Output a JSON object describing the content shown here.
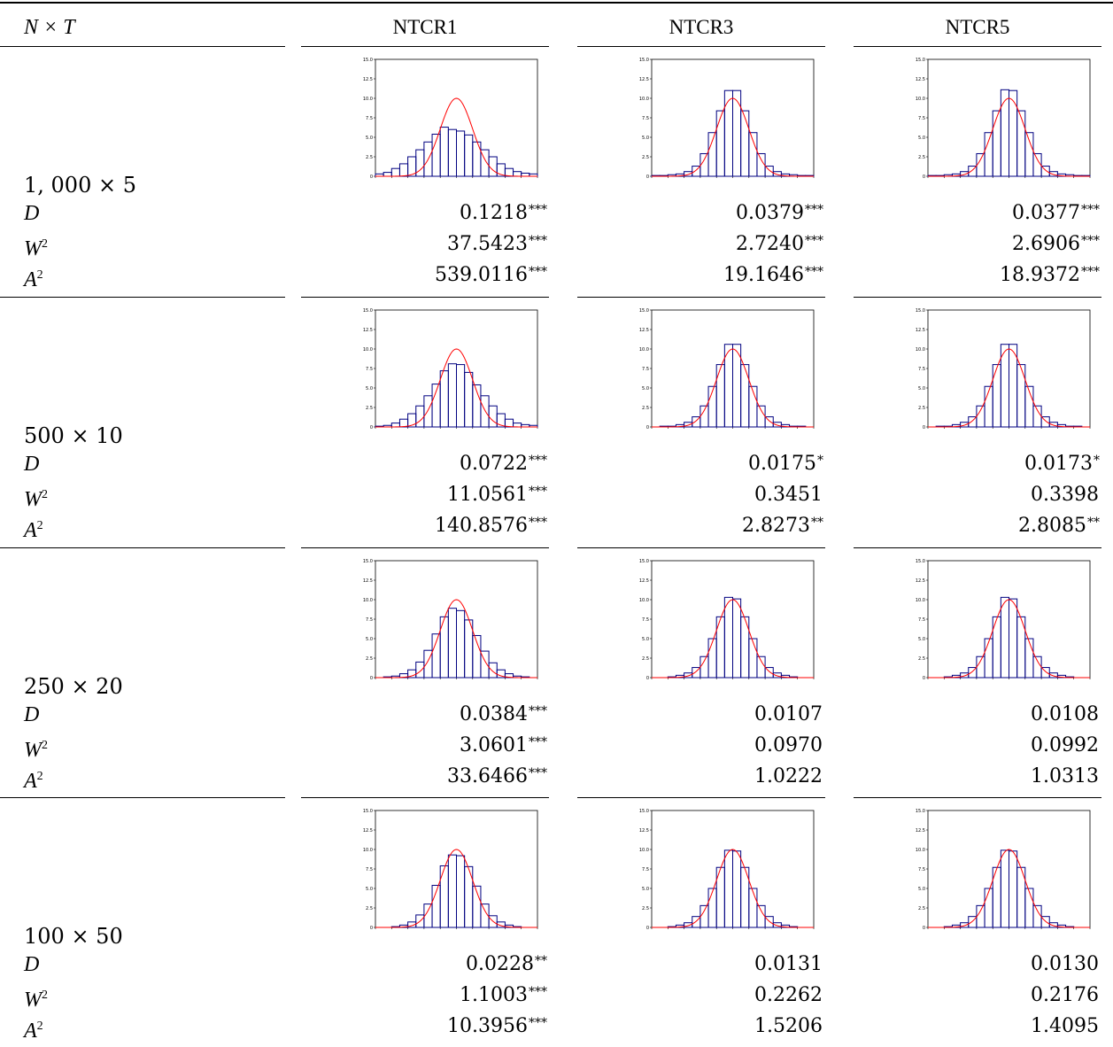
{
  "table": {
    "header": {
      "row_label": "N × T",
      "columns": [
        "NTCR1",
        "NTCR3",
        "NTCR5"
      ]
    },
    "stat_labels": {
      "D": "D",
      "W": "W",
      "A": "A",
      "sup2": "2"
    },
    "axis": {
      "y_ticks": [
        "0",
        "2.5",
        "5.0",
        "7.5",
        "10.0",
        "12.5",
        "15.0"
      ],
      "x_ticks": [
        "-5",
        "-4",
        "-3",
        "-2",
        "-1",
        "0",
        "1",
        "2",
        "3",
        "4",
        "5"
      ]
    },
    "rows": [
      {
        "label": "1, 000 × 5",
        "cells": [
          {
            "D": "0.1218",
            "D_sig": "***",
            "W2": "37.5423",
            "W2_sig": "***",
            "A2": "539.0116",
            "A2_sig": "***"
          },
          {
            "D": "0.0379",
            "D_sig": "***",
            "W2": "2.7240",
            "W2_sig": "***",
            "A2": "19.1646",
            "A2_sig": "***"
          },
          {
            "D": "0.0377",
            "D_sig": "***",
            "W2": "2.6906",
            "W2_sig": "***",
            "A2": "18.9372",
            "A2_sig": "***"
          }
        ]
      },
      {
        "label": "500 × 10",
        "cells": [
          {
            "D": "0.0722",
            "D_sig": "***",
            "W2": "11.0561",
            "W2_sig": "***",
            "A2": "140.8576",
            "A2_sig": "***"
          },
          {
            "D": "0.0175",
            "D_sig": "*",
            "W2": "0.3451",
            "W2_sig": "",
            "A2": "2.8273",
            "A2_sig": "**"
          },
          {
            "D": "0.0173",
            "D_sig": "*",
            "W2": "0.3398",
            "W2_sig": "",
            "A2": "2.8085",
            "A2_sig": "**"
          }
        ]
      },
      {
        "label": "250 × 20",
        "cells": [
          {
            "D": "0.0384",
            "D_sig": "***",
            "W2": "3.0601",
            "W2_sig": "***",
            "A2": "33.6466",
            "A2_sig": "***"
          },
          {
            "D": "0.0107",
            "D_sig": "",
            "W2": "0.0970",
            "W2_sig": "",
            "A2": "1.0222",
            "A2_sig": ""
          },
          {
            "D": "0.0108",
            "D_sig": "",
            "W2": "0.0992",
            "W2_sig": "",
            "A2": "1.0313",
            "A2_sig": ""
          }
        ]
      },
      {
        "label": "100 × 50",
        "cells": [
          {
            "D": "0.0228",
            "D_sig": "**",
            "W2": "1.1003",
            "W2_sig": "***",
            "A2": "10.3956",
            "A2_sig": "***"
          },
          {
            "D": "0.0131",
            "D_sig": "",
            "W2": "0.2262",
            "W2_sig": "",
            "A2": "1.5206",
            "A2_sig": ""
          },
          {
            "D": "0.0130",
            "D_sig": "",
            "W2": "0.2176",
            "W2_sig": "",
            "A2": "1.4095",
            "A2_sig": ""
          }
        ]
      }
    ]
  },
  "chart_data": [
    {
      "type": "bar",
      "row": "1, 000 × 5",
      "column": "NTCR1",
      "x": [
        -4.75,
        -4.25,
        -3.75,
        -3.25,
        -2.75,
        -2.25,
        -1.75,
        -1.25,
        -0.75,
        -0.25,
        0.25,
        0.75,
        1.25,
        1.75,
        2.25,
        2.75,
        3.25,
        3.75,
        4.25,
        4.75
      ],
      "values": [
        0.3,
        0.5,
        1.0,
        1.6,
        2.5,
        3.4,
        4.4,
        5.4,
        6.3,
        6.0,
        5.8,
        5.3,
        4.4,
        3.4,
        2.5,
        1.6,
        1.0,
        0.6,
        0.4,
        0.3
      ],
      "overlay": "normal density",
      "xlim": [
        -5,
        5
      ],
      "ylim": [
        0,
        15
      ],
      "colors": {
        "bars": "#000080",
        "curve": "#ff0000"
      }
    },
    {
      "type": "bar",
      "row": "1, 000 × 5",
      "column": "NTCR3",
      "x": [
        -4.75,
        -4.25,
        -3.75,
        -3.25,
        -2.75,
        -2.25,
        -1.75,
        -1.25,
        -0.75,
        -0.25,
        0.25,
        0.75,
        1.25,
        1.75,
        2.25,
        2.75,
        3.25,
        3.75,
        4.25,
        4.75
      ],
      "values": [
        0.1,
        0.1,
        0.2,
        0.3,
        0.6,
        1.3,
        2.9,
        5.6,
        8.4,
        11.0,
        11.0,
        8.4,
        5.6,
        2.9,
        1.3,
        0.6,
        0.3,
        0.2,
        0.1,
        0.1
      ],
      "overlay": "normal density",
      "xlim": [
        -5,
        5
      ],
      "ylim": [
        0,
        15
      ]
    },
    {
      "type": "bar",
      "row": "1, 000 × 5",
      "column": "NTCR5",
      "x": [
        -4.75,
        -4.25,
        -3.75,
        -3.25,
        -2.75,
        -2.25,
        -1.75,
        -1.25,
        -0.75,
        -0.25,
        0.25,
        0.75,
        1.25,
        1.75,
        2.25,
        2.75,
        3.25,
        3.75,
        4.25,
        4.75
      ],
      "values": [
        0.1,
        0.1,
        0.2,
        0.3,
        0.6,
        1.3,
        2.9,
        5.6,
        8.4,
        11.1,
        11.0,
        8.4,
        5.6,
        2.9,
        1.3,
        0.6,
        0.3,
        0.2,
        0.1,
        0.1
      ],
      "overlay": "normal density",
      "xlim": [
        -5,
        5
      ],
      "ylim": [
        0,
        15
      ]
    },
    {
      "type": "bar",
      "row": "500 × 10",
      "column": "NTCR1",
      "x": [
        -4.75,
        -4.25,
        -3.75,
        -3.25,
        -2.75,
        -2.25,
        -1.75,
        -1.25,
        -0.75,
        -0.25,
        0.25,
        0.75,
        1.25,
        1.75,
        2.25,
        2.75,
        3.25,
        3.75,
        4.25,
        4.75
      ],
      "values": [
        0.1,
        0.2,
        0.5,
        1.0,
        1.7,
        2.7,
        4.0,
        5.5,
        7.2,
        8.1,
        8.0,
        7.0,
        5.4,
        4.0,
        2.7,
        1.7,
        1.0,
        0.5,
        0.3,
        0.2
      ],
      "overlay": "normal density",
      "xlim": [
        -5,
        5
      ],
      "ylim": [
        0,
        15
      ]
    },
    {
      "type": "bar",
      "row": "500 × 10",
      "column": "NTCR3",
      "x": [
        -4.75,
        -4.25,
        -3.75,
        -3.25,
        -2.75,
        -2.25,
        -1.75,
        -1.25,
        -0.75,
        -0.25,
        0.25,
        0.75,
        1.25,
        1.75,
        2.25,
        2.75,
        3.25,
        3.75,
        4.25,
        4.75
      ],
      "values": [
        0.0,
        0.1,
        0.1,
        0.3,
        0.6,
        1.3,
        2.7,
        5.2,
        8.0,
        10.6,
        10.6,
        8.0,
        5.2,
        2.7,
        1.3,
        0.6,
        0.3,
        0.1,
        0.1,
        0.0
      ],
      "overlay": "normal density",
      "xlim": [
        -5,
        5
      ],
      "ylim": [
        0,
        15
      ]
    },
    {
      "type": "bar",
      "row": "500 × 10",
      "column": "NTCR5",
      "x": [
        -4.75,
        -4.25,
        -3.75,
        -3.25,
        -2.75,
        -2.25,
        -1.75,
        -1.25,
        -0.75,
        -0.25,
        0.25,
        0.75,
        1.25,
        1.75,
        2.25,
        2.75,
        3.25,
        3.75,
        4.25,
        4.75
      ],
      "values": [
        0.0,
        0.1,
        0.1,
        0.3,
        0.6,
        1.3,
        2.7,
        5.2,
        8.0,
        10.6,
        10.6,
        8.0,
        5.2,
        2.7,
        1.3,
        0.6,
        0.3,
        0.1,
        0.1,
        0.0
      ],
      "overlay": "normal density",
      "xlim": [
        -5,
        5
      ],
      "ylim": [
        0,
        15
      ]
    },
    {
      "type": "bar",
      "row": "250 × 20",
      "column": "NTCR1",
      "x": [
        -4.75,
        -4.25,
        -3.75,
        -3.25,
        -2.75,
        -2.25,
        -1.75,
        -1.25,
        -0.75,
        -0.25,
        0.25,
        0.75,
        1.25,
        1.75,
        2.25,
        2.75,
        3.25,
        3.75,
        4.25,
        4.75
      ],
      "values": [
        0.0,
        0.1,
        0.2,
        0.5,
        1.0,
        2.0,
        3.5,
        5.6,
        7.8,
        8.9,
        8.6,
        7.4,
        5.4,
        3.4,
        1.9,
        1.0,
        0.5,
        0.2,
        0.1,
        0.0
      ],
      "overlay": "normal density",
      "xlim": [
        -5,
        5
      ],
      "ylim": [
        0,
        15
      ]
    },
    {
      "type": "bar",
      "row": "250 × 20",
      "column": "NTCR3",
      "x": [
        -4.75,
        -4.25,
        -3.75,
        -3.25,
        -2.75,
        -2.25,
        -1.75,
        -1.25,
        -0.75,
        -0.25,
        0.25,
        0.75,
        1.25,
        1.75,
        2.25,
        2.75,
        3.25,
        3.75,
        4.25,
        4.75
      ],
      "values": [
        0.0,
        0.0,
        0.1,
        0.3,
        0.6,
        1.3,
        2.7,
        5.0,
        7.8,
        10.3,
        10.1,
        7.8,
        5.0,
        2.7,
        1.3,
        0.6,
        0.3,
        0.1,
        0.0,
        0.0
      ],
      "overlay": "normal density",
      "xlim": [
        -5,
        5
      ],
      "ylim": [
        0,
        15
      ]
    },
    {
      "type": "bar",
      "row": "250 × 20",
      "column": "NTCR5",
      "x": [
        -4.75,
        -4.25,
        -3.75,
        -3.25,
        -2.75,
        -2.25,
        -1.75,
        -1.25,
        -0.75,
        -0.25,
        0.25,
        0.75,
        1.25,
        1.75,
        2.25,
        2.75,
        3.25,
        3.75,
        4.25,
        4.75
      ],
      "values": [
        0.0,
        0.0,
        0.1,
        0.3,
        0.6,
        1.3,
        2.7,
        5.0,
        7.8,
        10.3,
        10.1,
        7.8,
        5.0,
        2.7,
        1.3,
        0.6,
        0.3,
        0.1,
        0.0,
        0.0
      ],
      "overlay": "normal density",
      "xlim": [
        -5,
        5
      ],
      "ylim": [
        0,
        15
      ]
    },
    {
      "type": "bar",
      "row": "100 × 50",
      "column": "NTCR1",
      "x": [
        -4.75,
        -4.25,
        -3.75,
        -3.25,
        -2.75,
        -2.25,
        -1.75,
        -1.25,
        -0.75,
        -0.25,
        0.25,
        0.75,
        1.25,
        1.75,
        2.25,
        2.75,
        3.25,
        3.75,
        4.25,
        4.75
      ],
      "values": [
        0.0,
        0.0,
        0.1,
        0.3,
        0.7,
        1.6,
        3.0,
        5.4,
        7.9,
        9.3,
        9.2,
        7.8,
        5.3,
        3.0,
        1.5,
        0.7,
        0.3,
        0.1,
        0.0,
        0.0
      ],
      "overlay": "normal density",
      "xlim": [
        -5,
        5
      ],
      "ylim": [
        0,
        15
      ]
    },
    {
      "type": "bar",
      "row": "100 × 50",
      "column": "NTCR3",
      "x": [
        -4.75,
        -4.25,
        -3.75,
        -3.25,
        -2.75,
        -2.25,
        -1.75,
        -1.25,
        -0.75,
        -0.25,
        0.25,
        0.75,
        1.25,
        1.75,
        2.25,
        2.75,
        3.25,
        3.75,
        4.25,
        4.75
      ],
      "values": [
        0.0,
        0.0,
        0.1,
        0.3,
        0.6,
        1.4,
        2.8,
        5.0,
        7.7,
        9.9,
        9.8,
        7.7,
        5.0,
        2.8,
        1.4,
        0.6,
        0.3,
        0.1,
        0.0,
        0.0
      ],
      "overlay": "normal density",
      "xlim": [
        -5,
        5
      ],
      "ylim": [
        0,
        15
      ]
    },
    {
      "type": "bar",
      "row": "100 × 50",
      "column": "NTCR5",
      "x": [
        -4.75,
        -4.25,
        -3.75,
        -3.25,
        -2.75,
        -2.25,
        -1.75,
        -1.25,
        -0.75,
        -0.25,
        0.25,
        0.75,
        1.25,
        1.75,
        2.25,
        2.75,
        3.25,
        3.75,
        4.25,
        4.75
      ],
      "values": [
        0.0,
        0.0,
        0.1,
        0.3,
        0.6,
        1.4,
        2.8,
        5.0,
        7.7,
        9.9,
        9.8,
        7.7,
        5.0,
        2.8,
        1.4,
        0.6,
        0.3,
        0.1,
        0.0,
        0.0
      ],
      "overlay": "normal density",
      "xlim": [
        -5,
        5
      ],
      "ylim": [
        0,
        15
      ]
    }
  ]
}
